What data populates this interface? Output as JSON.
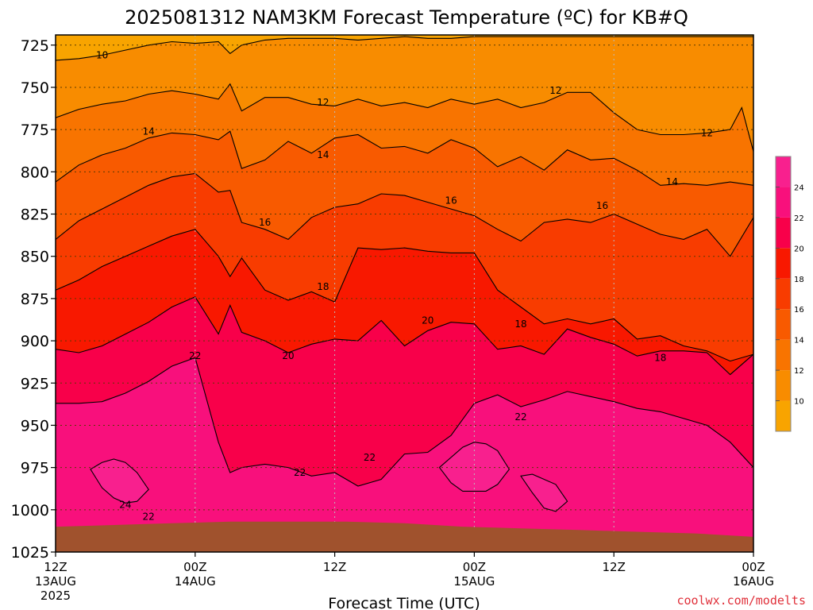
{
  "chart_data": {
    "type": "heatmap",
    "title": "2025081312 NAM3KM Forecast Temperature (ºC) for KB#Q",
    "xlabel": "Forecast Time (UTC)",
    "ylabel": "",
    "credit": "coolwx.com/modelts",
    "x_ticks": [
      {
        "hour": 0,
        "label": "12Z",
        "sub": "13AUG",
        "sub2": "2025"
      },
      {
        "hour": 12,
        "label": "00Z",
        "sub": "14AUG",
        "sub2": ""
      },
      {
        "hour": 24,
        "label": "12Z",
        "sub": "",
        "sub2": ""
      },
      {
        "hour": 36,
        "label": "00Z",
        "sub": "15AUG",
        "sub2": ""
      },
      {
        "hour": 48,
        "label": "12Z",
        "sub": "",
        "sub2": ""
      },
      {
        "hour": 60,
        "label": "00Z",
        "sub": "16AUG",
        "sub2": ""
      }
    ],
    "xlim": [
      0,
      60
    ],
    "y_ticks": [
      725,
      750,
      775,
      800,
      825,
      850,
      875,
      900,
      925,
      950,
      975,
      1000,
      1025
    ],
    "ylim": [
      719,
      1025
    ],
    "y_inverted": true,
    "unit": "ºC",
    "levels": [
      10,
      12,
      14,
      16,
      18,
      20,
      22,
      24
    ],
    "colors": [
      "#f8a400",
      "#f88c00",
      "#f87400",
      "#f85a00",
      "#f83c00",
      "#f81800",
      "#f8004a",
      "#f8107c",
      "#f8208e"
    ],
    "colorbar_labels": [
      "10",
      "12",
      "14",
      "16",
      "18",
      "20",
      "22",
      "24"
    ],
    "ground_color": "#a0522d",
    "ground_top_pressure": [
      1010,
      1009,
      1008,
      1007,
      1007,
      1007,
      1008,
      1010,
      1011,
      1012,
      1013,
      1014,
      1016
    ],
    "contour_labels": [
      {
        "value": 10,
        "hour": 4,
        "pressure": 731
      },
      {
        "value": 12,
        "hour": 23,
        "pressure": 759
      },
      {
        "value": 12,
        "hour": 43,
        "pressure": 752
      },
      {
        "value": 12,
        "hour": 56,
        "pressure": 777
      },
      {
        "value": 14,
        "hour": 8,
        "pressure": 776
      },
      {
        "value": 14,
        "hour": 23,
        "pressure": 790
      },
      {
        "value": 14,
        "hour": 53,
        "pressure": 806
      },
      {
        "value": 16,
        "hour": 18,
        "pressure": 830
      },
      {
        "value": 16,
        "hour": 34,
        "pressure": 817
      },
      {
        "value": 16,
        "hour": 47,
        "pressure": 820
      },
      {
        "value": 18,
        "hour": 23,
        "pressure": 868
      },
      {
        "value": 18,
        "hour": 40,
        "pressure": 890
      },
      {
        "value": 18,
        "hour": 52,
        "pressure": 910
      },
      {
        "value": 20,
        "hour": 20,
        "pressure": 909
      },
      {
        "value": 20,
        "hour": 32,
        "pressure": 888
      },
      {
        "value": 22,
        "hour": 12,
        "pressure": 909
      },
      {
        "value": 22,
        "hour": 21,
        "pressure": 978
      },
      {
        "value": 22,
        "hour": 27,
        "pressure": 969
      },
      {
        "value": 22,
        "hour": 40,
        "pressure": 945
      },
      {
        "value": 22,
        "hour": 8,
        "pressure": 1004
      },
      {
        "value": 24,
        "hour": 6,
        "pressure": 997
      }
    ],
    "boundaries": [
      {
        "upper": 10,
        "hour": [
          0,
          2,
          4,
          6,
          8,
          10,
          12,
          14,
          15,
          16,
          18,
          20,
          22,
          24,
          26,
          28,
          30,
          32,
          34,
          36,
          38,
          40,
          42,
          44,
          46,
          48,
          50,
          52,
          54,
          56,
          58,
          60
        ],
        "pressure": [
          734,
          733,
          731,
          728,
          725,
          723,
          724,
          723,
          730,
          725,
          722,
          721,
          721,
          721,
          722,
          721,
          720,
          721,
          721,
          720,
          720,
          720,
          720,
          720,
          720,
          720,
          720,
          720,
          720,
          720,
          720,
          720
        ]
      },
      {
        "upper": 12,
        "hour": [
          0,
          2,
          4,
          6,
          8,
          10,
          12,
          14,
          15,
          16,
          18,
          20,
          22,
          24,
          26,
          28,
          30,
          32,
          34,
          36,
          38,
          40,
          42,
          44,
          46,
          48,
          50,
          52,
          54,
          56,
          58,
          59,
          60
        ],
        "pressure": [
          768,
          763,
          760,
          758,
          754,
          752,
          754,
          757,
          748,
          764,
          756,
          756,
          760,
          761,
          757,
          761,
          759,
          762,
          757,
          760,
          757,
          762,
          759,
          753,
          753,
          765,
          775,
          778,
          778,
          777,
          775,
          762,
          788
        ]
      },
      {
        "upper": 14,
        "hour": [
          0,
          2,
          4,
          6,
          8,
          10,
          12,
          14,
          15,
          16,
          18,
          20,
          22,
          24,
          26,
          28,
          30,
          32,
          34,
          36,
          38,
          40,
          42,
          44,
          46,
          48,
          50,
          52,
          54,
          56,
          58,
          60
        ],
        "pressure": [
          806,
          796,
          790,
          786,
          780,
          777,
          778,
          781,
          776,
          798,
          793,
          782,
          789,
          780,
          778,
          786,
          785,
          789,
          781,
          786,
          797,
          791,
          799,
          787,
          793,
          792,
          799,
          808,
          807,
          808,
          806,
          808
        ]
      },
      {
        "upper": 16,
        "hour": [
          0,
          2,
          4,
          6,
          8,
          10,
          12,
          14,
          15,
          16,
          18,
          20,
          22,
          24,
          26,
          28,
          30,
          32,
          34,
          36,
          38,
          40,
          42,
          44,
          46,
          48,
          50,
          52,
          54,
          56,
          58,
          60
        ],
        "pressure": [
          840,
          829,
          822,
          815,
          808,
          803,
          801,
          812,
          811,
          830,
          834,
          840,
          827,
          821,
          819,
          813,
          814,
          818,
          822,
          826,
          834,
          841,
          830,
          828,
          830,
          825,
          831,
          837,
          840,
          834,
          850,
          827
        ]
      },
      {
        "upper": 18,
        "hour": [
          0,
          2,
          4,
          6,
          8,
          10,
          12,
          14,
          15,
          16,
          18,
          20,
          22,
          24,
          26,
          28,
          30,
          32,
          34,
          36,
          38,
          40,
          42,
          44,
          46,
          48,
          50,
          52,
          54,
          56,
          58,
          60
        ],
        "pressure": [
          870,
          864,
          856,
          850,
          844,
          838,
          834,
          850,
          862,
          851,
          870,
          876,
          871,
          877,
          845,
          846,
          845,
          847,
          848,
          848,
          870,
          880,
          890,
          887,
          890,
          887,
          899,
          897,
          903,
          906,
          912,
          908
        ]
      },
      {
        "upper": 20,
        "hour": [
          0,
          2,
          4,
          6,
          8,
          10,
          12,
          14,
          15,
          16,
          18,
          20,
          22,
          24,
          26,
          28,
          30,
          32,
          34,
          36,
          38,
          40,
          42,
          44,
          46,
          48,
          50,
          52,
          54,
          56,
          58,
          60
        ],
        "pressure": [
          905,
          907,
          903,
          896,
          889,
          880,
          874,
          896,
          879,
          895,
          900,
          907,
          902,
          899,
          900,
          888,
          903,
          894,
          889,
          890,
          905,
          903,
          908,
          893,
          898,
          902,
          909,
          906,
          906,
          907,
          920,
          908
        ]
      },
      {
        "upper": 22,
        "hour": [
          0,
          2,
          4,
          6,
          8,
          10,
          12,
          14,
          15,
          16,
          18,
          20,
          22,
          24,
          26,
          28,
          30,
          32,
          34,
          36,
          38,
          40,
          42,
          44,
          46,
          48,
          50,
          52,
          54,
          56,
          58,
          60
        ],
        "pressure": [
          937,
          937,
          936,
          931,
          924,
          915,
          910,
          960,
          978,
          975,
          973,
          975,
          980,
          978,
          986,
          982,
          967,
          966,
          956,
          937,
          932,
          939,
          935,
          930,
          933,
          936,
          940,
          942,
          946,
          950,
          960,
          975
        ]
      },
      {
        "upper": 24,
        "hour": [
          3,
          4,
          5,
          6,
          7,
          8,
          7,
          6,
          5,
          4,
          3
        ],
        "pressure": [
          976,
          972,
          970,
          972,
          978,
          988,
          995,
          996,
          993,
          987,
          976
        ]
      },
      {
        "upper": 24,
        "hour": [
          33,
          35,
          36,
          37,
          38,
          39,
          38,
          37,
          35,
          34,
          33
        ],
        "pressure": [
          975,
          963,
          960,
          961,
          965,
          976,
          985,
          989,
          989,
          984,
          975
        ]
      },
      {
        "upper": 24,
        "hour": [
          40,
          41,
          43,
          44,
          43,
          42,
          41,
          40
        ],
        "pressure": [
          980,
          979,
          985,
          995,
          1001,
          999,
          990,
          980
        ]
      }
    ]
  }
}
